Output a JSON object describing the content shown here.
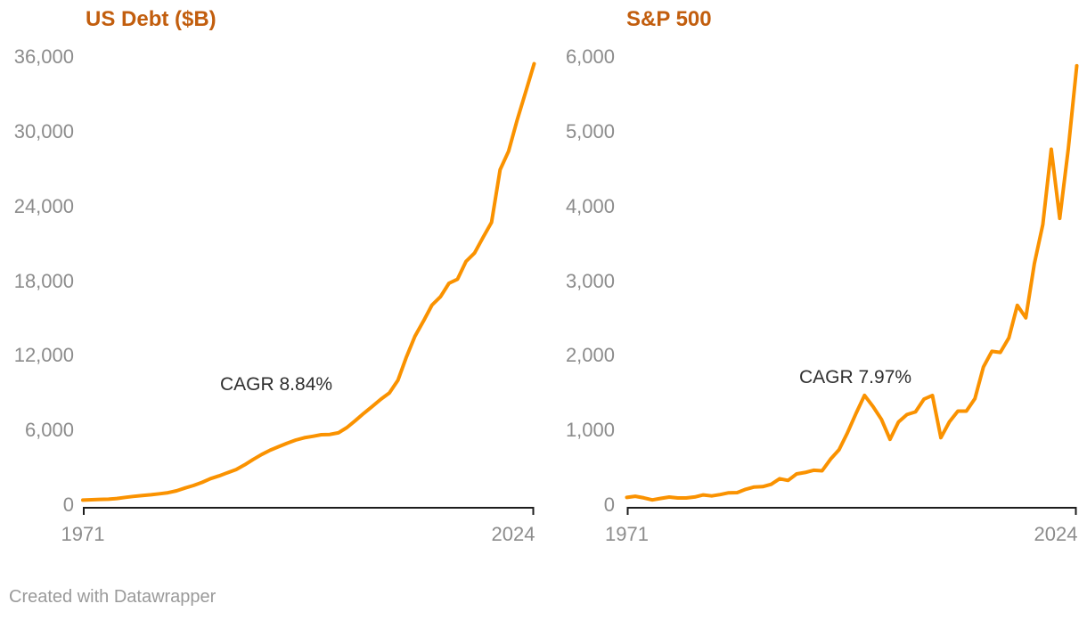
{
  "page": {
    "footer": "Created with Datawrapper"
  },
  "colors": {
    "line": "#fa9200",
    "title": "#c25e0e",
    "axis_label": "#8c8c8c",
    "axis_line": "#1d1d1d",
    "annotation": "#303030",
    "footer_text": "#9a9a9a",
    "background": "#ffffff"
  },
  "chart_data": [
    {
      "type": "line",
      "title": "US Debt ($B)",
      "annotation": "CAGR 8.84%",
      "legend": "none",
      "grid": false,
      "xlim": [
        1971,
        2024
      ],
      "ylim": [
        0,
        36000
      ],
      "x_ticks": [
        "1971",
        "2024"
      ],
      "y_ticks": [
        "0",
        "6,000",
        "12,000",
        "18,000",
        "24,000",
        "30,000",
        "36,000"
      ],
      "y_tick_values": [
        0,
        6000,
        12000,
        18000,
        24000,
        30000,
        36000
      ],
      "x": [
        1971,
        1972,
        1973,
        1974,
        1975,
        1976,
        1977,
        1978,
        1979,
        1980,
        1981,
        1982,
        1983,
        1984,
        1985,
        1986,
        1987,
        1988,
        1989,
        1990,
        1991,
        1992,
        1993,
        1994,
        1995,
        1996,
        1997,
        1998,
        1999,
        2000,
        2001,
        2002,
        2003,
        2004,
        2005,
        2006,
        2007,
        2008,
        2009,
        2010,
        2011,
        2012,
        2013,
        2014,
        2015,
        2016,
        2017,
        2018,
        2019,
        2020,
        2021,
        2022,
        2023,
        2024
      ],
      "values": [
        398,
        427,
        458,
        475,
        533,
        620,
        699,
        772,
        827,
        908,
        998,
        1142,
        1377,
        1572,
        1823,
        2125,
        2350,
        2602,
        2857,
        3233,
        3665,
        4065,
        4411,
        4693,
        4974,
        5225,
        5413,
        5526,
        5656,
        5674,
        5807,
        6228,
        6783,
        7379,
        7933,
        8507,
        9008,
        10025,
        11910,
        13562,
        14790,
        16066,
        16738,
        17824,
        18151,
        19573,
        20245,
        21516,
        22719,
        26945,
        28429,
        30928,
        33167,
        35465
      ]
    },
    {
      "type": "line",
      "title": "S&P 500",
      "annotation": "CAGR 7.97%",
      "legend": "none",
      "grid": false,
      "xlim": [
        1971,
        2024
      ],
      "ylim": [
        0,
        6000
      ],
      "x_ticks": [
        "1971",
        "2024"
      ],
      "y_ticks": [
        "0",
        "1,000",
        "2,000",
        "3,000",
        "4,000",
        "5,000",
        "6,000"
      ],
      "y_tick_values": [
        0,
        1000,
        2000,
        3000,
        4000,
        5000,
        6000
      ],
      "x": [
        1971,
        1972,
        1973,
        1974,
        1975,
        1976,
        1977,
        1978,
        1979,
        1980,
        1981,
        1982,
        1983,
        1984,
        1985,
        1986,
        1987,
        1988,
        1989,
        1990,
        1991,
        1992,
        1993,
        1994,
        1995,
        1996,
        1997,
        1998,
        1999,
        2000,
        2001,
        2002,
        2003,
        2004,
        2005,
        2006,
        2007,
        2008,
        2009,
        2010,
        2011,
        2012,
        2013,
        2014,
        2015,
        2016,
        2017,
        2018,
        2019,
        2020,
        2021,
        2022,
        2023,
        2024
      ],
      "values": [
        102,
        118,
        97,
        69,
        90,
        107,
        95,
        96,
        108,
        136,
        123,
        141,
        165,
        167,
        211,
        242,
        247,
        278,
        353,
        330,
        417,
        436,
        466,
        459,
        616,
        741,
        970,
        1229,
        1469,
        1320,
        1148,
        880,
        1112,
        1212,
        1248,
        1418,
        1468,
        903,
        1115,
        1258,
        1258,
        1426,
        1848,
        2059,
        2044,
        2239,
        2674,
        2507,
        3231,
        3756,
        4766,
        3840,
        4770,
        5882
      ]
    }
  ]
}
